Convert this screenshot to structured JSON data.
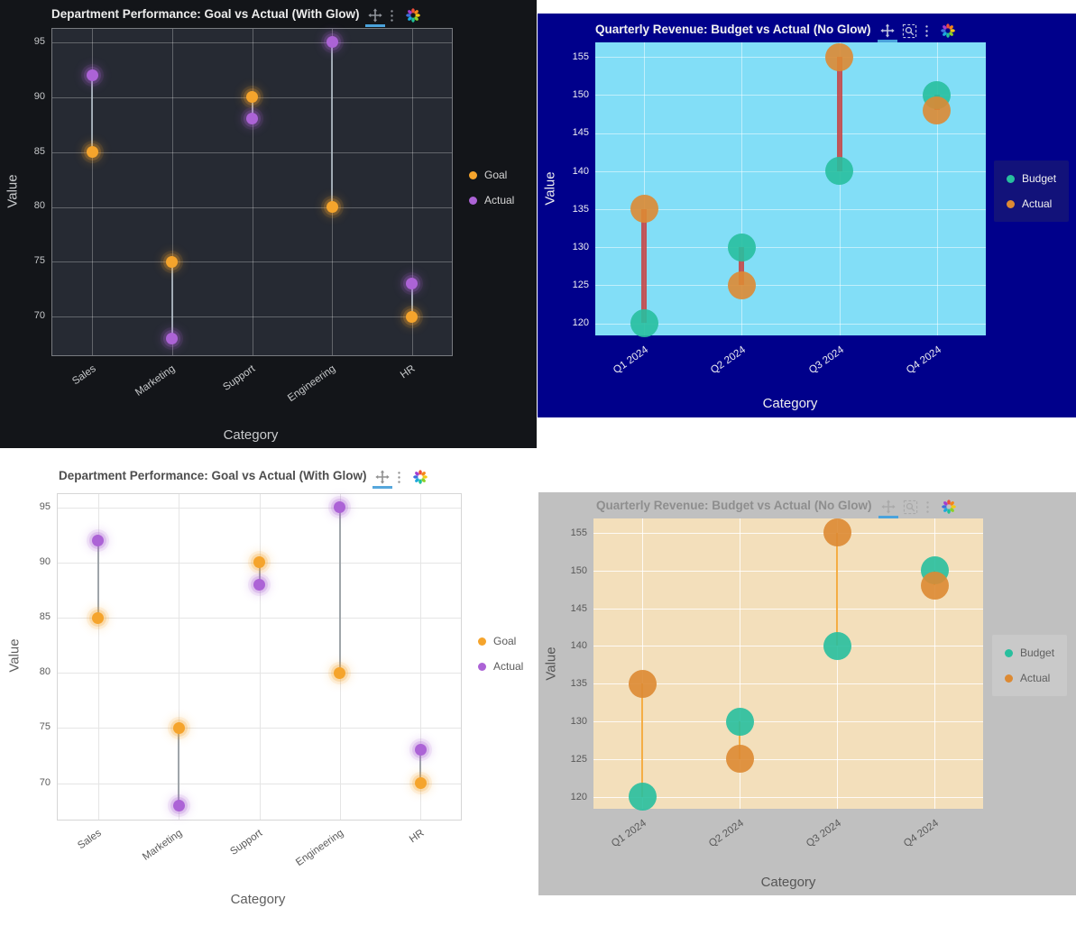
{
  "chart_data": [
    {
      "type": "scatter",
      "subtype": "dumbbell",
      "title": "Department Performance: Goal vs Actual (With Glow)",
      "xlabel": "Category",
      "ylabel": "Value",
      "categories": [
        "Sales",
        "Marketing",
        "Support",
        "Engineering",
        "HR"
      ],
      "series": [
        {
          "name": "Goal",
          "color": "#F5A42C",
          "values": [
            85,
            75,
            90,
            80,
            70
          ]
        },
        {
          "name": "Actual",
          "color": "#AC63D6",
          "values": [
            92,
            68,
            88,
            95,
            73
          ]
        }
      ],
      "yticks": [
        70,
        75,
        80,
        85,
        90,
        95
      ],
      "ymin": 66.5,
      "ymax": 96.2,
      "grid": true,
      "legend_position": "right",
      "glow": true,
      "marker_diameter": 13,
      "marker_opacity": 1,
      "connector": {
        "color": "rgba(185,196,206,0.8)",
        "width": 2
      },
      "modebar_icons": [
        "pan-icon",
        "ellipsis-icon",
        "plotly-logo-icon"
      ],
      "theme": {
        "paper": "#131519",
        "plot": "#262A33",
        "grid_color": "rgba(255,255,255,0.28)",
        "plot_border": "rgba(255,255,255,0.38)",
        "title_color": "#ECECEC",
        "axis_color": "#C9CBCD",
        "tick_color": "#C6C8CA",
        "legend_text": "#D6D6D6",
        "legend_bg": "transparent",
        "icon_color": "#8F939A",
        "accent_underline": "#4BA3DC"
      }
    },
    {
      "type": "scatter",
      "subtype": "dumbbell",
      "title": "Quarterly Revenue: Budget vs Actual (No Glow)",
      "xlabel": "Category",
      "ylabel": "Value",
      "categories": [
        "Q1 2024",
        "Q2 2024",
        "Q3 2024",
        "Q4 2024"
      ],
      "series": [
        {
          "name": "Budget",
          "color": "#28BF9E",
          "values": [
            120,
            130,
            140,
            150
          ]
        },
        {
          "name": "Actual",
          "color": "#DD8A33",
          "values": [
            135,
            125,
            155,
            148
          ]
        }
      ],
      "yticks": [
        120,
        125,
        130,
        135,
        140,
        145,
        150,
        155
      ],
      "ymin": 118.4,
      "ymax": 156.9,
      "grid": true,
      "legend_position": "right",
      "glow": false,
      "marker_diameter": 31,
      "marker_opacity": 0.9,
      "connector": {
        "color": "rgba(201,62,62,0.85)",
        "width": 6
      },
      "modebar_icons": [
        "pan-icon",
        "zoom-box-icon",
        "ellipsis-icon",
        "plotly-logo-icon"
      ],
      "theme": {
        "paper": "#00008B",
        "plot": "#82DEF7",
        "grid_color": "rgba(255,255,255,0.5)",
        "plot_border": "",
        "title_color": "#F2F2F2",
        "axis_color": "#EFEFEF",
        "tick_color": "#EDEDF2",
        "legend_text": "#F0F0F0",
        "legend_bg": "#12127A",
        "icon_color": "#C2C7E0",
        "accent_underline": "#4BA3DC"
      }
    },
    {
      "type": "scatter",
      "subtype": "dumbbell",
      "title": "Department Performance: Goal vs Actual (With Glow)",
      "xlabel": "Category",
      "ylabel": "Value",
      "categories": [
        "Sales",
        "Marketing",
        "Support",
        "Engineering",
        "HR"
      ],
      "series": [
        {
          "name": "Goal",
          "color": "#F5A42C",
          "values": [
            85,
            75,
            90,
            80,
            70
          ]
        },
        {
          "name": "Actual",
          "color": "#AC63D6",
          "values": [
            92,
            68,
            88,
            95,
            73
          ]
        }
      ],
      "yticks": [
        70,
        75,
        80,
        85,
        90,
        95
      ],
      "ymin": 66.7,
      "ymax": 96.2,
      "grid": true,
      "legend_position": "right",
      "glow": true,
      "marker_diameter": 13,
      "marker_opacity": 1,
      "connector": {
        "color": "rgba(150,156,162,0.9)",
        "width": 2
      },
      "modebar_icons": [
        "pan-icon",
        "ellipsis-icon",
        "plotly-logo-icon"
      ],
      "theme": {
        "paper": "#FFFFFF",
        "plot": "#FFFFFF",
        "grid_color": "#E5E5E5",
        "plot_border": "#D6D6D6",
        "title_color": "#4E4E4E",
        "axis_color": "#5E5E5E",
        "tick_color": "#5A5A5A",
        "legend_text": "#5A5A5A",
        "legend_bg": "transparent",
        "icon_color": "#909090",
        "accent_underline": "#56A7DC"
      }
    },
    {
      "type": "scatter",
      "subtype": "dumbbell",
      "title": "Quarterly Revenue: Budget vs Actual (No Glow)",
      "xlabel": "Category",
      "ylabel": "Value",
      "categories": [
        "Q1 2024",
        "Q2 2024",
        "Q3 2024",
        "Q4 2024"
      ],
      "series": [
        {
          "name": "Budget",
          "color": "#28BF9E",
          "values": [
            120,
            130,
            140,
            150
          ]
        },
        {
          "name": "Actual",
          "color": "#DD8A33",
          "values": [
            135,
            125,
            155,
            148
          ]
        }
      ],
      "yticks": [
        120,
        125,
        130,
        135,
        140,
        145,
        150,
        155
      ],
      "ymin": 118.4,
      "ymax": 156.9,
      "grid": true,
      "legend_position": "right",
      "glow": false,
      "marker_diameter": 31,
      "marker_opacity": 0.9,
      "connector": {
        "color": "rgba(244,166,52,0.9)",
        "width": 2
      },
      "modebar_icons": [
        "pan-icon",
        "zoom-box-icon",
        "ellipsis-icon",
        "plotly-logo-icon"
      ],
      "theme": {
        "paper": "#C0C0C0",
        "plot": "#F3DFBB",
        "grid_color": "rgba(255,255,255,0.85)",
        "plot_border": "",
        "title_color": "#8E8E8E",
        "axis_color": "#555555",
        "tick_color": "#595959",
        "legend_text": "#5F5F5F",
        "legend_bg": "#C9C9C9",
        "icon_color": "#A9A9A9",
        "accent_underline": "#4BA3DC"
      }
    }
  ]
}
